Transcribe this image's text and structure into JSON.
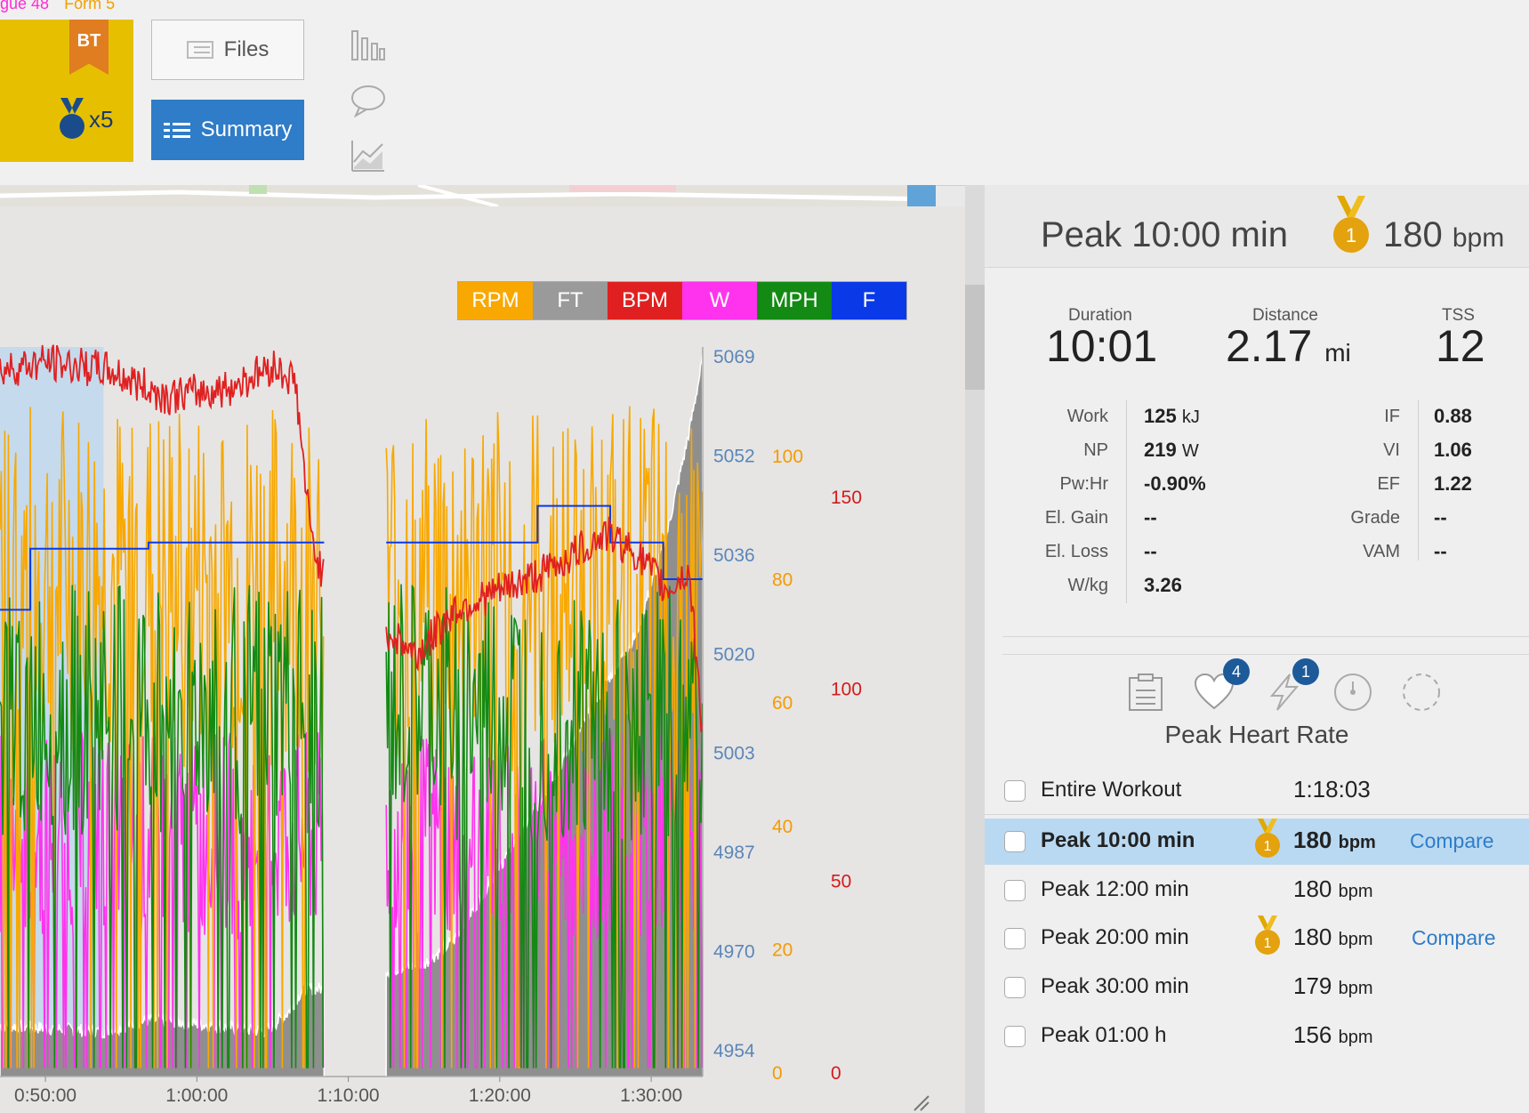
{
  "metrics_strip": {
    "fatigue": "gue 48",
    "form": "Form 5"
  },
  "badge": {
    "label": "BT",
    "medal_count": "x5"
  },
  "buttons": {
    "files": "Files",
    "summary": "Summary"
  },
  "side_tools": [
    "bar-chart-icon",
    "comment-icon",
    "trend-chart-icon"
  ],
  "legend": [
    {
      "label": "RPM",
      "color": "#f8a800"
    },
    {
      "label": "FT",
      "color": "#9a9a9a"
    },
    {
      "label": "BPM",
      "color": "#e02020"
    },
    {
      "label": "W",
      "color": "#ff33ee"
    },
    {
      "label": "MPH",
      "color": "#138a13"
    },
    {
      "label": "F",
      "color": "#0a39e8"
    }
  ],
  "chart_data": {
    "type": "line",
    "x_ticks": [
      "0:50:00",
      "1:00:00",
      "1:10:00",
      "1:20:00",
      "1:30:00"
    ],
    "axis_ft": {
      "ticks": [
        "5069",
        "5052",
        "5036",
        "5020",
        "5003",
        "4987",
        "4970",
        "4954"
      ],
      "color": "#5b86b8"
    },
    "axis_rpm": {
      "ticks": [
        "100",
        "80",
        "60",
        "40",
        "20",
        "0"
      ],
      "color": "#f59a00"
    },
    "axis_bpm": {
      "ticks": [
        "150",
        "100",
        "50",
        "0"
      ],
      "color": "#d41a1a"
    },
    "series_bpm": [
      {
        "t": 47.0,
        "v": 183
      },
      {
        "t": 50.0,
        "v": 185
      },
      {
        "t": 54.0,
        "v": 183
      },
      {
        "t": 58.0,
        "v": 176
      },
      {
        "t": 62.0,
        "v": 178
      },
      {
        "t": 65.0,
        "v": 184
      },
      {
        "t": 66.5,
        "v": 180
      },
      {
        "t": 67.5,
        "v": 140
      },
      {
        "t": 68.4,
        "v": 128
      },
      {
        "t": 72.5,
        "v": 115
      },
      {
        "t": 74.5,
        "v": 108
      },
      {
        "t": 77.0,
        "v": 120
      },
      {
        "t": 80.0,
        "v": 125
      },
      {
        "t": 83.0,
        "v": 130
      },
      {
        "t": 85.0,
        "v": 135
      },
      {
        "t": 87.0,
        "v": 140
      },
      {
        "t": 89.0,
        "v": 135
      },
      {
        "t": 91.0,
        "v": 125
      },
      {
        "t": 92.5,
        "v": 130
      },
      {
        "t": 93.4,
        "v": 88
      }
    ],
    "series_f": [
      {
        "t": 47.0,
        "v": 5026
      },
      {
        "t": 49.0,
        "v": 5026
      },
      {
        "t": 49.0,
        "v": 5036
      },
      {
        "t": 56.8,
        "v": 5036
      },
      {
        "t": 56.8,
        "v": 5037
      },
      {
        "t": 68.4,
        "v": 5037
      },
      {
        "t": 72.5,
        "v": 5037
      },
      {
        "t": 82.5,
        "v": 5037
      },
      {
        "t": 82.5,
        "v": 5043
      },
      {
        "t": 87.3,
        "v": 5043
      },
      {
        "t": 87.3,
        "v": 5037
      },
      {
        "t": 90.8,
        "v": 5037
      },
      {
        "t": 90.8,
        "v": 5031
      },
      {
        "t": 93.4,
        "v": 5031
      }
    ],
    "series_ft": [
      {
        "t": 47.0,
        "v": 4958
      },
      {
        "t": 53.8,
        "v": 4957
      },
      {
        "t": 57.0,
        "v": 4959
      },
      {
        "t": 61.0,
        "v": 4958
      },
      {
        "t": 64.5,
        "v": 4957
      },
      {
        "t": 66.0,
        "v": 4960
      },
      {
        "t": 67.0,
        "v": 4964
      },
      {
        "t": 68.4,
        "v": 4964
      },
      {
        "t": 72.5,
        "v": 4967
      },
      {
        "t": 75.0,
        "v": 4968
      },
      {
        "t": 77.0,
        "v": 4972
      },
      {
        "t": 79.0,
        "v": 4980
      },
      {
        "t": 81.0,
        "v": 4988
      },
      {
        "t": 83.0,
        "v": 4996
      },
      {
        "t": 85.0,
        "v": 5005
      },
      {
        "t": 87.0,
        "v": 5014
      },
      {
        "t": 89.0,
        "v": 5022
      },
      {
        "t": 91.0,
        "v": 5038
      },
      {
        "t": 92.5,
        "v": 5055
      },
      {
        "t": 93.4,
        "v": 5067
      }
    ],
    "gaps": [
      [
        68.4,
        72.5
      ]
    ],
    "selected_range": [
      "0:47:00",
      "0:53:50"
    ]
  },
  "peak_header": {
    "title": "Peak 10:00 min",
    "medal": "1",
    "value": "180",
    "unit": "bpm"
  },
  "summary": {
    "duration_label": "Duration",
    "duration": "10:01",
    "distance_label": "Distance",
    "distance": "2.17",
    "distance_unit": "mi",
    "tss_label": "TSS",
    "tss": "12"
  },
  "details_left": [
    {
      "label": "Work",
      "value": "125",
      "unit": "kJ"
    },
    {
      "label": "NP",
      "value": "219",
      "unit": "W"
    },
    {
      "label": "Pw:Hr",
      "value": "-0.90%",
      "unit": ""
    },
    {
      "label": "El. Gain",
      "value": "--",
      "unit": ""
    },
    {
      "label": "El. Loss",
      "value": "--",
      "unit": ""
    },
    {
      "label": "W/kg",
      "value": "3.26",
      "unit": ""
    }
  ],
  "details_right": [
    {
      "label": "IF",
      "value": "0.88"
    },
    {
      "label": "VI",
      "value": "1.06"
    },
    {
      "label": "EF",
      "value": "1.22"
    },
    {
      "label": "Grade",
      "value": "--"
    },
    {
      "label": "VAM",
      "value": "--"
    }
  ],
  "tabs": {
    "icons": [
      "clipboard-icon",
      "heart-icon",
      "lightning-icon",
      "clock-icon",
      "dashed-circle-icon"
    ],
    "heart_badge": "4",
    "lightning_badge": "1"
  },
  "section_title": "Peak Heart Rate",
  "rows": [
    {
      "name": "Entire Workout",
      "value": "1:18:03",
      "unit": "",
      "medal": "",
      "compare": "",
      "selected": false
    },
    {
      "name": "Peak 10:00 min",
      "value": "180",
      "unit": "bpm",
      "medal": "1",
      "compare": "Compare",
      "selected": true
    },
    {
      "name": "Peak 12:00 min",
      "value": "180",
      "unit": "bpm",
      "medal": "",
      "compare": "",
      "selected": false
    },
    {
      "name": "Peak 20:00 min",
      "value": "180",
      "unit": "bpm",
      "medal": "1",
      "compare": "Compare",
      "selected": false
    },
    {
      "name": "Peak 30:00 min",
      "value": "179",
      "unit": "bpm",
      "medal": "",
      "compare": "",
      "selected": false
    },
    {
      "name": "Peak 01:00 h",
      "value": "156",
      "unit": "bpm",
      "medal": "",
      "compare": "",
      "selected": false
    }
  ]
}
